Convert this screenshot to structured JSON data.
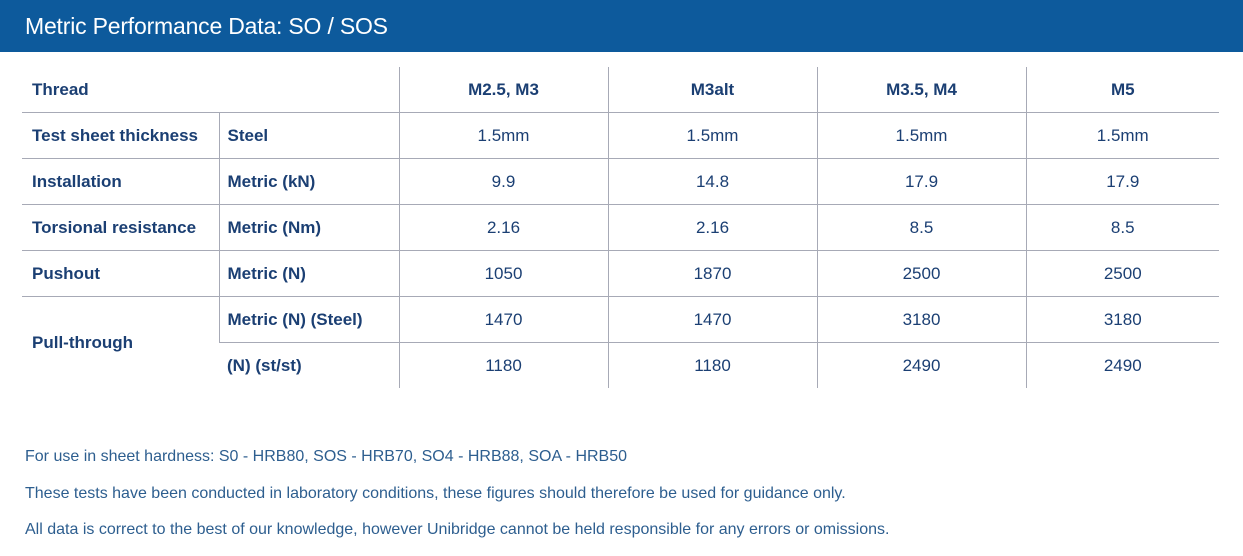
{
  "title": "Metric Performance Data: SO / SOS",
  "table": {
    "thread_label": "Thread",
    "columns": [
      "M2.5, M3",
      "M3alt",
      "M3.5, M4",
      "M5"
    ],
    "rows": [
      {
        "label": "Test sheet thickness",
        "sub": "Steel",
        "values": [
          "1.5mm",
          "1.5mm",
          "1.5mm",
          "1.5mm"
        ]
      },
      {
        "label": "Installation",
        "sub": "Metric (kN)",
        "values": [
          "9.9",
          "14.8",
          "17.9",
          "17.9"
        ]
      },
      {
        "label": "Torsional resistance",
        "sub": "Metric (Nm)",
        "values": [
          "2.16",
          "2.16",
          "8.5",
          "8.5"
        ]
      },
      {
        "label": "Pushout",
        "sub": "Metric (N)",
        "values": [
          "1050",
          "1870",
          "2500",
          "2500"
        ]
      }
    ],
    "pull_through": {
      "label": "Pull-through",
      "subrows": [
        {
          "sub": "Metric (N) (Steel)",
          "values": [
            "1470",
            "1470",
            "3180",
            "3180"
          ]
        },
        {
          "sub": "(N) (st/st)",
          "values": [
            "1180",
            "1180",
            "2490",
            "2490"
          ]
        }
      ]
    }
  },
  "notes": [
    "For use in sheet hardness: S0 - HRB80, SOS - HRB70, SO4 - HRB88, SOA - HRB50",
    "These tests have been conducted in laboratory conditions, these figures should therefore be used for guidance only.",
    "All data is correct to the best of our knowledge, however Unibridge cannot be held responsible for any errors or omissions."
  ],
  "colors": {
    "header_bg": "#0d5a9c",
    "text": "#1b3f73",
    "rule": "#a7aab6"
  }
}
